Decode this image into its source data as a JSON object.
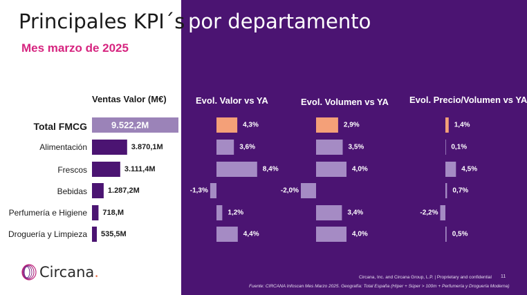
{
  "slide": {
    "title_main": "Principales KPI´s",
    "title_sub": "por departamento",
    "subtitle": "Mes marzo de 2025",
    "page_number": "11",
    "footer_company": "Circana, Inc. and Circana Group, L.P. | Proprietary and confidential",
    "footer_source": "Fuente: CIRCANA Infoscan Mes Marzo 2025. Geografía: Total España (Híper + Súper > 100m + Perfumería y Droguería Moderna)",
    "logo_text": "Circana",
    "logo_dot": ".",
    "logo_icon": "circana-rings-icon"
  },
  "colors": {
    "background_purple": "#4B1472",
    "left_panel": "#FFFFFF",
    "value_bar_total": "#9B83B8",
    "value_bar": "#4B1472",
    "evol_bar_total": "#F4A078",
    "evol_bar": "#A58BC4",
    "subtitle_pink": "#D6247F",
    "logo_ring": "#C0267E",
    "logo_accent": "#E8704A"
  },
  "chart_data": {
    "type": "bar",
    "orientation": "horizontal",
    "categories": [
      "Total FMCG",
      "Alimentación",
      "Frescos",
      "Bebidas",
      "Perfumería e Higiene",
      "Droguería y Limpieza"
    ],
    "series": [
      {
        "name": "Ventas Valor (M€)",
        "values": [
          9522.2,
          3870.1,
          3111.4,
          1287.2,
          718,
          535.5
        ],
        "labels": [
          "9.522,2M",
          "3.870,1M",
          "3.111,4M",
          "1.287,2M",
          "718,M",
          "535,5M"
        ]
      },
      {
        "name": "Evol. Valor vs YA",
        "values": [
          4.3,
          3.6,
          8.4,
          -1.3,
          1.2,
          4.4
        ],
        "labels": [
          "4,3%",
          "3,6%",
          "8,4%",
          "-1,3%",
          "1,2%",
          "4,4%"
        ]
      },
      {
        "name": "Evol. Volumen vs YA",
        "values": [
          2.9,
          3.5,
          4.0,
          -2.0,
          3.4,
          4.0
        ],
        "labels": [
          "2,9%",
          "3,5%",
          "4,0%",
          "-2,0%",
          "3,4%",
          "4,0%"
        ]
      },
      {
        "name": "Evol. Precio/Volumen vs YA",
        "values": [
          1.4,
          0.1,
          4.5,
          0.7,
          -2.2,
          0.5
        ],
        "labels": [
          "1,4%",
          "0,1%",
          "4,5%",
          "0,7%",
          "-2,2%",
          "0,5%"
        ]
      }
    ]
  }
}
